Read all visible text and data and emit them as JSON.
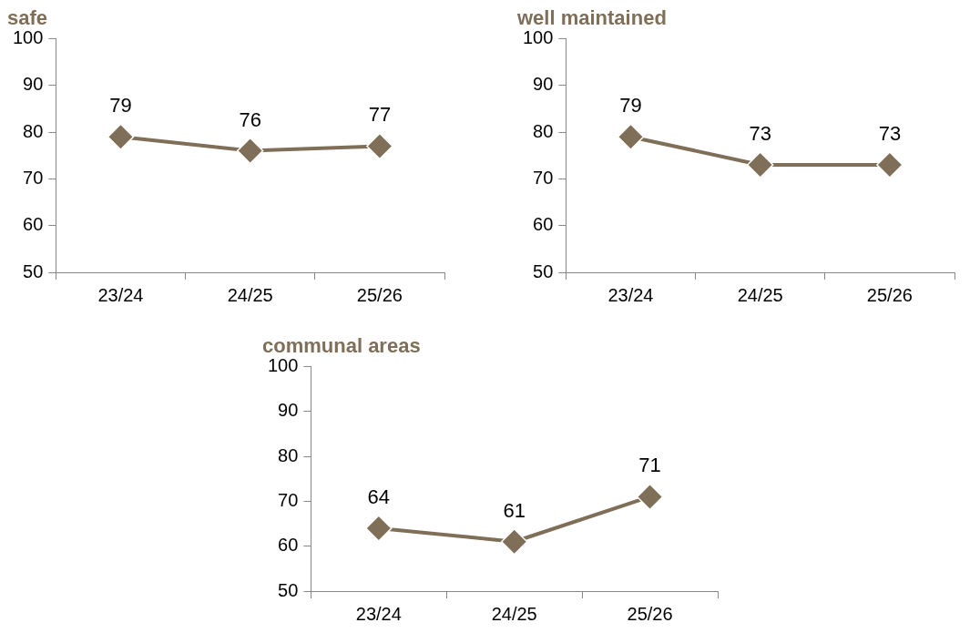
{
  "chart_data": [
    {
      "type": "line",
      "title": "safe",
      "categories": [
        "23/24",
        "24/25",
        "25/26"
      ],
      "series": [
        {
          "color": "#7f6e58",
          "values": [
            79,
            76,
            77
          ]
        }
      ],
      "ylim": [
        50,
        100
      ],
      "yticks": [
        50,
        60,
        70,
        80,
        90,
        100
      ],
      "grid": false,
      "legend": false,
      "marker": "diamond",
      "line_style": "solid",
      "data_labels": true
    },
    {
      "type": "line",
      "title": "well maintained",
      "categories": [
        "23/24",
        "24/25",
        "25/26"
      ],
      "series": [
        {
          "color": "#7f6e58",
          "values": [
            79,
            73,
            73
          ]
        }
      ],
      "ylim": [
        50,
        100
      ],
      "yticks": [
        50,
        60,
        70,
        80,
        90,
        100
      ],
      "grid": false,
      "legend": false,
      "marker": "diamond",
      "line_style": "solid",
      "data_labels": true
    },
    {
      "type": "line",
      "title": "communal areas",
      "categories": [
        "23/24",
        "24/25",
        "25/26"
      ],
      "series": [
        {
          "color": "#7f6e58",
          "values": [
            64,
            61,
            71
          ]
        }
      ],
      "ylim": [
        50,
        100
      ],
      "yticks": [
        50,
        60,
        70,
        80,
        90,
        100
      ],
      "grid": false,
      "legend": false,
      "marker": "diamond",
      "line_style": "solid",
      "data_labels": true
    }
  ]
}
